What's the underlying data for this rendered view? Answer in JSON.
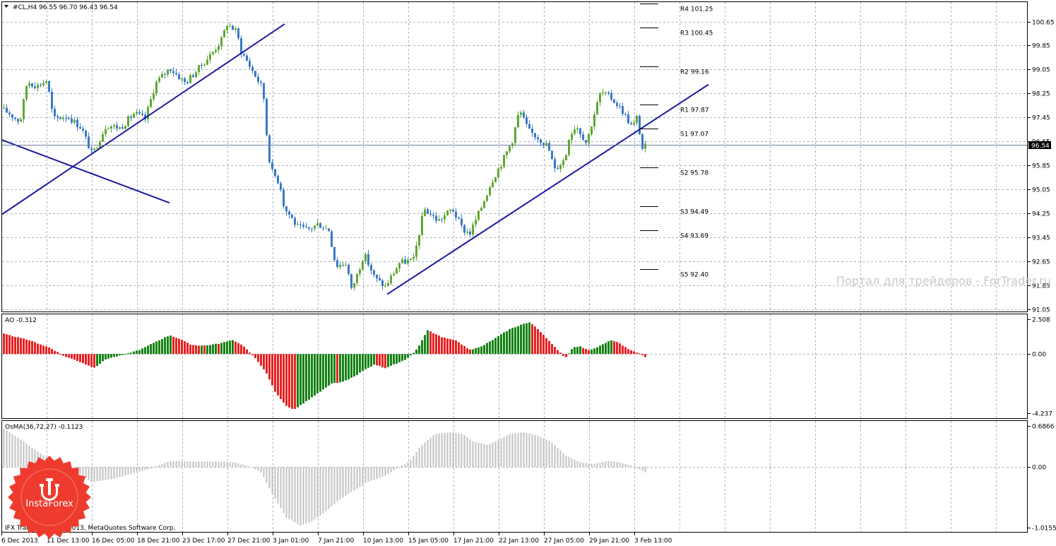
{
  "chart_data": [
    {
      "type": "candlestick",
      "title": "#CL,H4  96.55 96.70 96.43 96.54",
      "ylim": [
        90.85,
        101.45
      ],
      "y_ticks": [
        "100.65",
        "99.85",
        "99.05",
        "98.25",
        "97.45",
        "96.65",
        "95.85",
        "95.05",
        "94.25",
        "93.45",
        "92.65",
        "91.85",
        "91.05"
      ],
      "current_price": "96.54",
      "current_value": 96.54,
      "x_tick_labels": [
        "6 Dec 2013",
        "11 Dec 13:00",
        "16 Dec 05:00",
        "18 Dec 21:00",
        "23 Dec 17:00",
        "27 Dec 21:00",
        "3 Jan 01:00",
        "7 Jan 21:00",
        "10 Jan 13:00",
        "15 Jan 05:00",
        "17 Jan 21:00",
        "22 Jan 13:00",
        "27 Jan 05:00",
        "29 Jan 21:00",
        "3 Feb 13:00"
      ],
      "path": [
        [
          0,
          97.75
        ],
        [
          12,
          97.6
        ],
        [
          28,
          97.3
        ],
        [
          38,
          98.65
        ],
        [
          52,
          98.5
        ],
        [
          66,
          98.7
        ],
        [
          75,
          97.4
        ],
        [
          95,
          97.5
        ],
        [
          115,
          97.1
        ],
        [
          130,
          96.2
        ],
        [
          150,
          97.2
        ],
        [
          170,
          97.1
        ],
        [
          190,
          97.6
        ],
        [
          205,
          97.4
        ],
        [
          220,
          98.6
        ],
        [
          240,
          99.1
        ],
        [
          262,
          98.6
        ],
        [
          285,
          99.2
        ],
        [
          300,
          99.6
        ],
        [
          315,
          100.1
        ],
        [
          320,
          100.6
        ],
        [
          335,
          100.3
        ],
        [
          340,
          99.7
        ],
        [
          350,
          99.3
        ],
        [
          362,
          98.8
        ],
        [
          372,
          98.4
        ],
        [
          378,
          96.6
        ],
        [
          383,
          95.7
        ],
        [
          392,
          95.4
        ],
        [
          398,
          95.05
        ],
        [
          402,
          94.4
        ],
        [
          410,
          94.2
        ],
        [
          420,
          93.8
        ],
        [
          435,
          93.7
        ],
        [
          450,
          93.9
        ],
        [
          465,
          93.7
        ],
        [
          475,
          92.5
        ],
        [
          490,
          92.6
        ],
        [
          497,
          91.7
        ],
        [
          505,
          92.2
        ],
        [
          515,
          92.9
        ],
        [
          530,
          92.1
        ],
        [
          545,
          91.8
        ],
        [
          555,
          92.2
        ],
        [
          565,
          92.6
        ],
        [
          585,
          92.7
        ],
        [
          600,
          94.4
        ],
        [
          620,
          94.0
        ],
        [
          640,
          94.4
        ],
        [
          655,
          93.7
        ],
        [
          665,
          93.6
        ],
        [
          680,
          94.4
        ],
        [
          695,
          95.3
        ],
        [
          710,
          95.95
        ],
        [
          725,
          96.7
        ],
        [
          735,
          97.7
        ],
        [
          748,
          97.0
        ],
        [
          760,
          96.8
        ],
        [
          775,
          96.5
        ],
        [
          785,
          95.7
        ],
        [
          800,
          96.1
        ],
        [
          805,
          96.8
        ],
        [
          815,
          97.2
        ],
        [
          830,
          96.6
        ],
        [
          840,
          97.5
        ],
        [
          850,
          98.3
        ],
        [
          865,
          98.1
        ],
        [
          880,
          97.7
        ],
        [
          895,
          97.1
        ],
        [
          902,
          97.5
        ],
        [
          908,
          96.4
        ],
        [
          916,
          96.55
        ]
      ],
      "trendlines": [
        {
          "from": [
            3,
            94.22
          ],
          "to": [
            403,
            100.57
          ]
        },
        {
          "from": [
            3,
            96.7
          ],
          "to": [
            240,
            94.6
          ]
        },
        {
          "from": [
            548,
            91.55
          ],
          "to": [
            1003,
            98.55
          ]
        }
      ],
      "pivots": [
        {
          "label": "R4",
          "value": "101.25",
          "level": 101.25
        },
        {
          "label": "R3",
          "value": "100.45",
          "level": 100.45
        },
        {
          "label": "R2",
          "value": "99.16",
          "level": 99.16
        },
        {
          "label": "R1",
          "value": "97.87",
          "level": 97.87
        },
        {
          "label": "S1",
          "value": "97.07",
          "level": 97.07
        },
        {
          "label": "S2",
          "value": "95.78",
          "level": 95.78
        },
        {
          "label": "S3",
          "value": "94.49",
          "level": 94.49
        },
        {
          "label": "S4",
          "value": "93.69",
          "level": 93.69
        },
        {
          "label": "S5",
          "value": "92.40",
          "level": 92.4
        }
      ],
      "colors": {
        "up": "#5fa832",
        "down": "#3a78c8",
        "trend": "#1a1aa0",
        "grid": "#a9b3c4"
      }
    },
    {
      "type": "bar",
      "title": "AO -0.312",
      "ylim": [
        -4.237,
        2.508
      ],
      "y_ticks": [
        "2.508",
        "0.00",
        "-4.237"
      ],
      "path": [
        [
          0,
          1.5
        ],
        [
          40,
          1.0
        ],
        [
          70,
          0.45
        ],
        [
          90,
          -0.15
        ],
        [
          110,
          -0.5
        ],
        [
          133,
          -1.0
        ],
        [
          150,
          -0.35
        ],
        [
          175,
          -0.05
        ],
        [
          200,
          0.35
        ],
        [
          215,
          0.75
        ],
        [
          240,
          1.35
        ],
        [
          255,
          1.05
        ],
        [
          270,
          0.65
        ],
        [
          290,
          0.6
        ],
        [
          310,
          0.75
        ],
        [
          330,
          1.0
        ],
        [
          345,
          0.55
        ],
        [
          352,
          0.15
        ],
        [
          360,
          -0.25
        ],
        [
          375,
          -1.2
        ],
        [
          390,
          -2.8
        ],
        [
          405,
          -3.7
        ],
        [
          415,
          -4.0
        ],
        [
          430,
          -3.5
        ],
        [
          450,
          -2.8
        ],
        [
          470,
          -2.1
        ],
        [
          485,
          -2.0
        ],
        [
          500,
          -1.65
        ],
        [
          515,
          -1.15
        ],
        [
          530,
          -0.75
        ],
        [
          545,
          -1.0
        ],
        [
          555,
          -0.8
        ],
        [
          575,
          -0.4
        ],
        [
          590,
          0.35
        ],
        [
          605,
          1.7
        ],
        [
          625,
          1.2
        ],
        [
          645,
          0.95
        ],
        [
          665,
          0.3
        ],
        [
          680,
          0.5
        ],
        [
          700,
          1.1
        ],
        [
          720,
          1.75
        ],
        [
          740,
          2.15
        ],
        [
          750,
          2.25
        ],
        [
          760,
          1.85
        ],
        [
          780,
          0.75
        ],
        [
          795,
          0.0
        ],
        [
          800,
          -0.3
        ],
        [
          810,
          0.45
        ],
        [
          820,
          0.55
        ],
        [
          835,
          0.25
        ],
        [
          850,
          0.6
        ],
        [
          865,
          1.0
        ],
        [
          875,
          0.8
        ],
        [
          890,
          0.3
        ],
        [
          905,
          0.05
        ],
        [
          916,
          -0.31
        ]
      ],
      "colors": {
        "up": "#148214",
        "down": "#e82020"
      }
    },
    {
      "type": "bar",
      "title": "OsMA(36,72,27) -0.1123",
      "ylim": [
        -1.0155,
        0.6866
      ],
      "y_ticks": [
        "0.6866",
        "0.00",
        "-1.0155"
      ],
      "path": [
        [
          0,
          0.68
        ],
        [
          30,
          0.45
        ],
        [
          60,
          0.2
        ],
        [
          90,
          0.05
        ],
        [
          110,
          -0.1
        ],
        [
          130,
          -0.25
        ],
        [
          160,
          -0.2
        ],
        [
          190,
          -0.1
        ],
        [
          215,
          -0.02
        ],
        [
          240,
          0.1
        ],
        [
          270,
          0.09
        ],
        [
          300,
          0.09
        ],
        [
          330,
          0.08
        ],
        [
          355,
          0.0
        ],
        [
          370,
          -0.1
        ],
        [
          385,
          -0.45
        ],
        [
          405,
          -0.85
        ],
        [
          425,
          -0.98
        ],
        [
          440,
          -0.92
        ],
        [
          460,
          -0.75
        ],
        [
          480,
          -0.55
        ],
        [
          500,
          -0.4
        ],
        [
          520,
          -0.25
        ],
        [
          545,
          -0.15
        ],
        [
          565,
          0.0
        ],
        [
          580,
          0.1
        ],
        [
          595,
          0.35
        ],
        [
          615,
          0.55
        ],
        [
          640,
          0.58
        ],
        [
          655,
          0.55
        ],
        [
          670,
          0.42
        ],
        [
          690,
          0.37
        ],
        [
          705,
          0.45
        ],
        [
          720,
          0.55
        ],
        [
          740,
          0.58
        ],
        [
          760,
          0.53
        ],
        [
          780,
          0.42
        ],
        [
          800,
          0.2
        ],
        [
          820,
          0.08
        ],
        [
          840,
          0.05
        ],
        [
          860,
          0.1
        ],
        [
          875,
          0.08
        ],
        [
          895,
          0.02
        ],
        [
          916,
          -0.11
        ]
      ],
      "colors": {
        "bar": "#c2c2c2"
      }
    }
  ],
  "footer": {
    "copyright": "IFX Trader, © 2001-2013, MetaQuotes Software Corp."
  },
  "watermark": "Портал для трейдеров - ForTrader.ru",
  "logo": {
    "text": "InstaForex",
    "color": "#ee3b2e"
  }
}
